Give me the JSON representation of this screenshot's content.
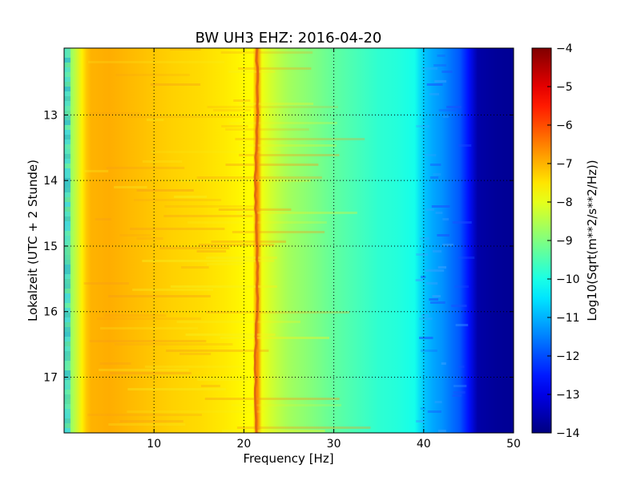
{
  "chart_data": {
    "type": "heatmap",
    "title": "BW UH3 EHZ: 2016-04-20",
    "xlabel": "Frequency [Hz]",
    "ylabel": "Lokalzeit (UTC + 2 Stunde)",
    "xlim": [
      0,
      50
    ],
    "ylim": [
      17.85,
      11.98
    ],
    "x_ticks": [
      10,
      20,
      30,
      40,
      50
    ],
    "y_ticks": [
      13,
      14,
      15,
      16,
      17
    ],
    "grid": true,
    "colormap": "jet",
    "colorbar": {
      "label": "Log10(Sqrt(m**2/s**2/Hz))",
      "range": [
        -14,
        -4
      ],
      "ticks": [
        -4,
        -5,
        -6,
        -7,
        -8,
        -9,
        -10,
        -11,
        -12,
        -13,
        -14
      ]
    },
    "spectrum_profile": {
      "frequency_hz": [
        0,
        0.5,
        1,
        2,
        2.5,
        3,
        5,
        8,
        12,
        15,
        18,
        19.5,
        20,
        21,
        21.5,
        22,
        23,
        24,
        25,
        27,
        30,
        32,
        35,
        37,
        39,
        40,
        41,
        42,
        43,
        44,
        45,
        46,
        48,
        50
      ],
      "log10_amplitude": [
        -9.2,
        -8.9,
        -8.6,
        -7.6,
        -7.2,
        -7.0,
        -6.95,
        -7.1,
        -7.3,
        -7.4,
        -7.55,
        -7.65,
        -7.7,
        -7.75,
        -6.5,
        -7.9,
        -8.2,
        -8.45,
        -8.65,
        -8.9,
        -9.3,
        -9.5,
        -9.8,
        -9.9,
        -10.05,
        -10.8,
        -11.1,
        -11.3,
        -11.6,
        -11.9,
        -12.6,
        -13.6,
        -13.75,
        -13.8
      ]
    },
    "notes": [
      {
        "text": "narrow high-amplitude line near 21.5 Hz throughout the time span"
      }
    ]
  }
}
